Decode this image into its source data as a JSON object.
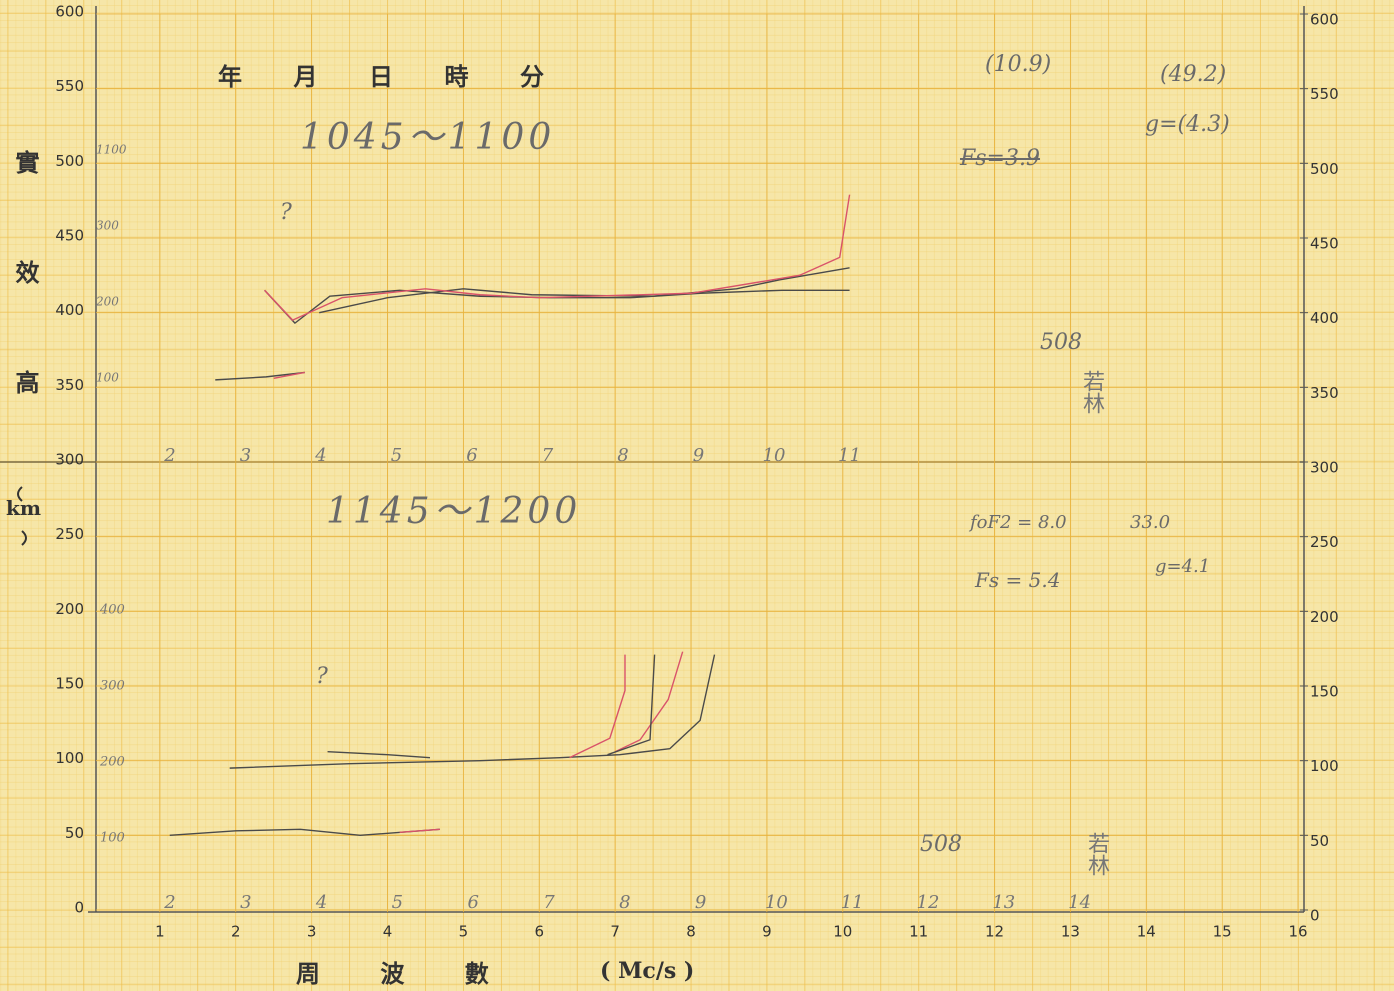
{
  "chart_data": {
    "type": "line",
    "header": [
      "年",
      "月",
      "日",
      "時",
      "分"
    ],
    "y_label": "實效高",
    "y_unit": "km",
    "x_label": "周 波 數",
    "x_unit": "( Mc/s )",
    "xlim": [
      0,
      16
    ],
    "xticks": [
      1,
      2,
      3,
      4,
      5,
      6,
      7,
      8,
      9,
      10,
      11,
      12,
      13,
      14,
      15,
      16
    ],
    "ylim": [
      0,
      600
    ],
    "yticks": [
      0,
      50,
      100,
      150,
      200,
      250,
      300,
      350,
      400,
      450,
      500,
      550,
      600
    ],
    "y2lim": [
      0,
      600
    ],
    "y2ticks": [
      0,
      50,
      100,
      150,
      200,
      250,
      300,
      350,
      400,
      450,
      500,
      550,
      600
    ],
    "grid": true,
    "divider": 300,
    "series": [
      {
        "color": "#4a4a4a",
        "x": [
          1.73,
          2.4,
          2.91
        ],
        "values": [
          355,
          357,
          360
        ]
      },
      {
        "color": "#d9536a",
        "x": [
          2.5,
          2.91
        ],
        "values": [
          356,
          360
        ]
      },
      {
        "color": "#4a4a4a",
        "x": [
          2.38,
          2.78,
          3.24,
          4.16,
          5.22,
          6.14,
          7.2,
          8.12,
          9.2,
          10.09
        ],
        "values": [
          415,
          393,
          411,
          415,
          411,
          410,
          410,
          413,
          415,
          415
        ]
      },
      {
        "color": "#4a4a4a",
        "x": [
          3.1,
          4.0,
          5.0,
          5.9,
          7.5,
          8.6,
          9.17,
          10.09
        ],
        "values": [
          400,
          410,
          416,
          412,
          411,
          416,
          422,
          430
        ]
      },
      {
        "color": "#d9536a",
        "x": [
          2.38,
          2.75,
          3.4,
          4.5,
          5.22,
          6.0,
          8.0,
          9.43,
          9.96,
          10.09
        ],
        "values": [
          415,
          395,
          410,
          416,
          412,
          410,
          413,
          425,
          437,
          479
        ]
      },
      {
        "color": "#4a4a4a",
        "x": [
          1.13,
          2.0,
          2.85,
          3.64,
          4.69
        ],
        "values": [
          50,
          53,
          54,
          50,
          54
        ]
      },
      {
        "color": "#d9536a",
        "x": [
          4.16,
          4.69
        ],
        "values": [
          52,
          54
        ]
      },
      {
        "color": "#4a4a4a",
        "x": [
          1.92,
          3.5,
          5.22,
          6.27,
          7.06,
          7.72,
          8.12,
          8.31
        ],
        "values": [
          95,
          98,
          100,
          102,
          104,
          108,
          127,
          171
        ]
      },
      {
        "color": "#d9536a",
        "x": [
          6.4,
          6.93,
          7.13,
          7.13
        ],
        "values": [
          102,
          115,
          147,
          171
        ]
      },
      {
        "color": "#d9536a",
        "x": [
          7.0,
          7.33,
          7.7,
          7.89
        ],
        "values": [
          106,
          114,
          141,
          173
        ]
      },
      {
        "color": "#4a4a4a",
        "x": [
          6.9,
          7.46,
          7.52
        ],
        "values": [
          104,
          114,
          171
        ]
      },
      {
        "color": "#4a4a4a",
        "x": [
          3.21,
          4.0,
          4.56
        ],
        "values": [
          106,
          104,
          102
        ]
      }
    ],
    "upper_freq_marks": [
      "2",
      "3",
      "4",
      "5",
      "6",
      "7",
      "8",
      "9",
      "10",
      "11"
    ],
    "lower_freq_marks": [
      "2",
      "3",
      "4",
      "5",
      "6",
      "7",
      "8",
      "9",
      "10",
      "11",
      "12",
      "13",
      "14"
    ],
    "upper_depth_marks": [
      "1100",
      "300",
      "200",
      "100"
    ],
    "lower_depth_marks": [
      "400",
      "300",
      "200",
      "100"
    ],
    "notes": [
      "1045～1100",
      "1145～1200",
      "(10.9)",
      "(49.2)",
      "g=(4.3)",
      "Fs=3.9",
      "508",
      "若林",
      "foF2 = 8.0",
      "33.0",
      "Fs = 5.4",
      "g=4.1",
      "508",
      "若林",
      "?",
      "?"
    ]
  }
}
